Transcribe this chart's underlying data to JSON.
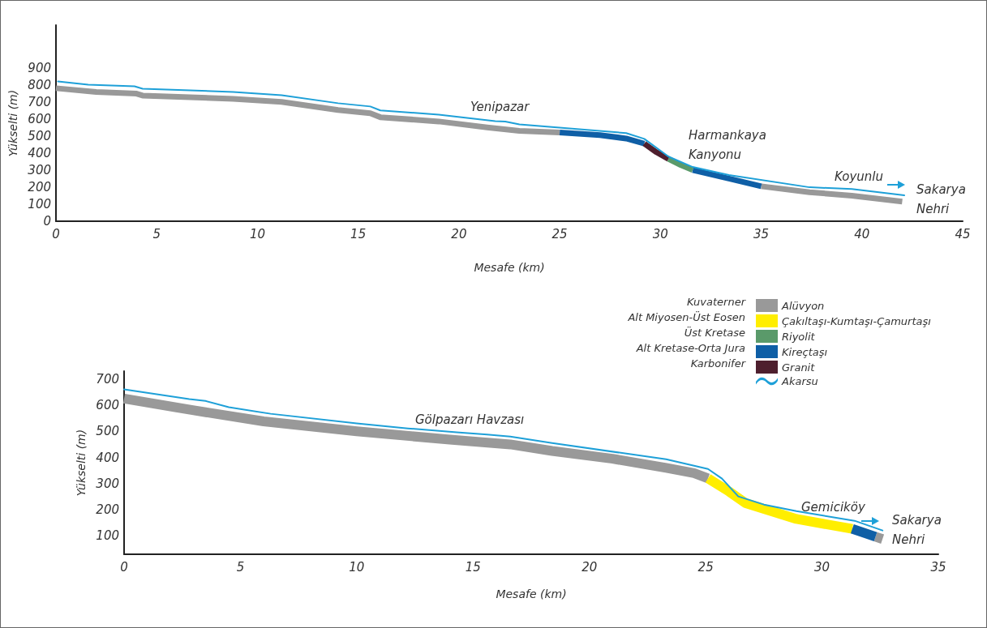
{
  "chart_data": [
    {
      "type": "line",
      "xlabel": "Mesafe (km)",
      "ylabel": "Yükselti (m)",
      "xlim": [
        0,
        45
      ],
      "xticks": [
        0,
        5,
        10,
        15,
        20,
        25,
        30,
        35,
        40,
        45
      ],
      "ylim": [
        0,
        1150
      ],
      "yticks": [
        0,
        100,
        200,
        300,
        400,
        500,
        600,
        700,
        800,
        900
      ],
      "grid": false,
      "marker": "none",
      "line_style": "solid",
      "annotations": [
        "Yenipazar",
        "Harmankaya\nKanyonu",
        "Koyunlu",
        "Sakarya\nNehri"
      ],
      "series": [
        {
          "color": "#999999",
          "x": [
            0,
            2,
            4,
            4.3,
            8.8,
            11.2,
            14,
            15.6,
            16.1,
            19,
            21.4,
            23,
            25,
            30,
            35,
            37.4,
            39.5,
            42
          ],
          "values": [
            780,
            758,
            748,
            737,
            718,
            700,
            652,
            633,
            610,
            585,
            550,
            530,
            520,
            null,
            205,
            170,
            150,
            115
          ]
        },
        {
          "color": "#0f5fa6",
          "x": [
            25,
            27,
            28.3,
            29.2,
            30,
            31.6,
            33.4,
            35
          ],
          "values": [
            520,
            505,
            485,
            455,
            null,
            300,
            250,
            205
          ]
        },
        {
          "color": "#4e1f2e",
          "x": [
            29.2,
            29.8,
            30.4
          ],
          "values": [
            455,
            405,
            365
          ]
        },
        {
          "color": "#5a9a6a",
          "x": [
            30.4,
            31,
            31.6
          ],
          "values": [
            365,
            330,
            300
          ]
        },
        {
          "color": "#1ea0d8",
          "x": [
            0.1,
            1.6,
            3.9,
            4.3,
            8.8,
            11.2,
            14,
            15.6,
            16.1,
            19,
            21.8,
            22.3,
            23,
            28.3,
            29.2,
            30.4,
            31.6,
            33.4,
            37.4,
            39.5,
            42.1
          ],
          "values": [
            820,
            801,
            791,
            777,
            758,
            739,
            692,
            673,
            650,
            625,
            587,
            585,
            568,
            517,
            483,
            379,
            318,
            271,
            199,
            189,
            152
          ]
        }
      ]
    },
    {
      "type": "line",
      "xlabel": "Mesafe (km)",
      "ylabel": "Yükselti (m)",
      "xlim": [
        0,
        35
      ],
      "xticks": [
        0,
        5,
        10,
        15,
        20,
        25,
        30,
        35
      ],
      "ylim": [
        30,
        730
      ],
      "yticks": [
        100,
        200,
        300,
        400,
        500,
        600,
        700
      ],
      "grid": false,
      "marker": "none",
      "line_style": "solid",
      "legend": "top right",
      "annotations": [
        "Kuvaterner",
        "Alt Miyosen-Üst Eosen",
        "Üst Kretase",
        "Alt Kretase-Orta Jura",
        "Karbonifer",
        "Gölpazarı Havzası",
        "Gemiciköy",
        "Sakarya\nNehri"
      ],
      "series": [
        {
          "name": "Alüvyon",
          "color": "#999999",
          "x": [
            0,
            3,
            6,
            10,
            14,
            16.6,
            18.4,
            21,
            23.3,
            24.5,
            25.1,
            28,
            32.3,
            32.6
          ],
          "values": [
            625,
            580,
            538,
            500,
            468,
            450,
            425,
            395,
            360,
            340,
            320,
            null,
            97,
            88
          ]
        },
        {
          "name": "Çakıltaşı-Kumtaşı-Çamurtaşı",
          "color": "#ffee00",
          "x": [
            25.1,
            26,
            26.7,
            28.9,
            31.3
          ],
          "values": [
            320,
            270,
            226,
            165,
            127
          ]
        },
        {
          "name": "Riyolit",
          "color": "#5a9a6a"
        },
        {
          "name": "Kireçtaşı",
          "color": "#0f5fa6",
          "x": [
            31.3,
            32.3
          ],
          "values": [
            127,
            97
          ]
        },
        {
          "name": "Granit",
          "color": "#4e1f2e"
        },
        {
          "name": "Akarsu",
          "color": "#1ea0d8",
          "x": [
            0,
            2.8,
            3.5,
            4.5,
            6.3,
            10,
            12.2,
            14.3,
            15.6,
            16.6,
            18.4,
            23.3,
            25.1,
            25.7,
            26.4,
            27.5,
            28.9,
            31.4,
            32.6
          ],
          "values": [
            660,
            623,
            616,
            592,
            567,
            530,
            511,
            496,
            488,
            480,
            455,
            393,
            356,
            319,
            251,
            220,
            195,
            158,
            121
          ]
        }
      ]
    }
  ]
}
